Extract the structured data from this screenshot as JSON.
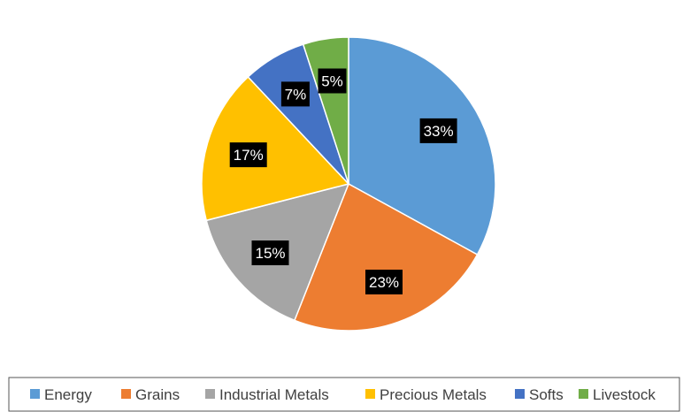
{
  "chart_data": {
    "type": "pie",
    "title": "",
    "legend_position": "bottom",
    "categories": [
      "Energy",
      "Grains",
      "Industrial Metals",
      "Precious Metals",
      "Softs",
      "Livestock"
    ],
    "values": [
      33,
      23,
      15,
      17,
      7,
      5
    ],
    "labels": [
      "33%",
      "23%",
      "15%",
      "17%",
      "7%",
      "5%"
    ],
    "colors": [
      "#5B9BD5",
      "#ED7D31",
      "#A5A5A5",
      "#FFC000",
      "#4472C4",
      "#70AD47"
    ]
  }
}
